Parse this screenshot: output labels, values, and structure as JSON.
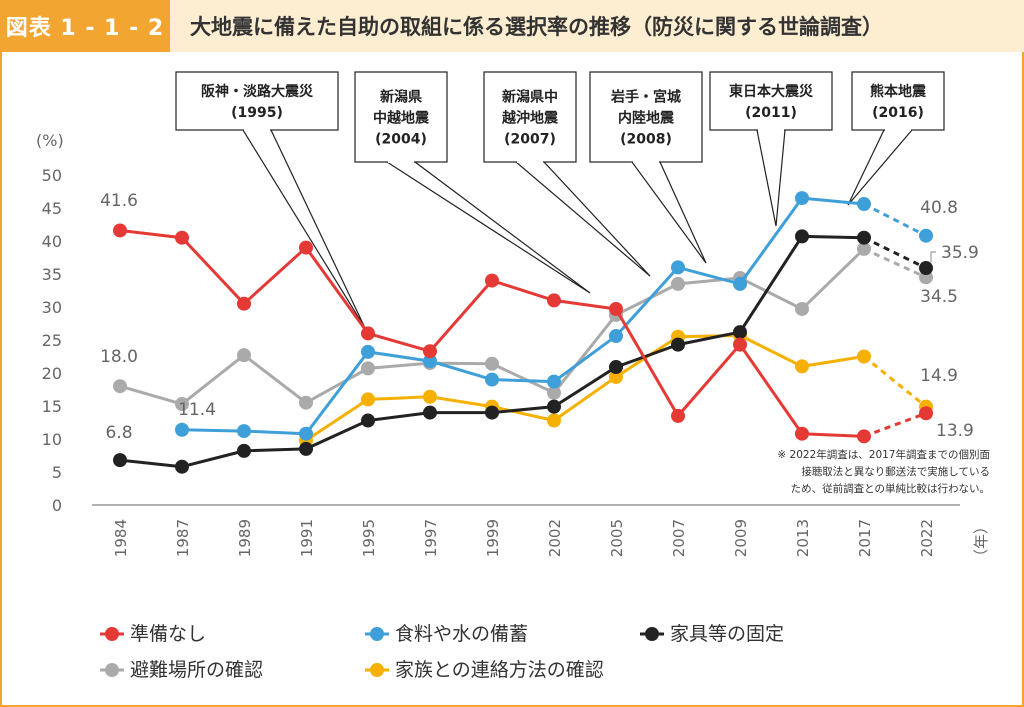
{
  "header": {
    "badge": "図表 1 - 1 - 2",
    "title": "大地震に備えた自助の取組に係る選択率の推移（防災に関する世論調査）"
  },
  "chart_data": {
    "type": "line",
    "ylabel": "(%)",
    "xlabel": "（年）",
    "ylim": [
      0,
      50
    ],
    "yticks": [
      0,
      5,
      10,
      15,
      20,
      25,
      30,
      35,
      40,
      45,
      50
    ],
    "categories": [
      "1984",
      "1987",
      "1989",
      "1991",
      "1995",
      "1997",
      "1999",
      "2002",
      "2005",
      "2007",
      "2009",
      "2013",
      "2017",
      "2022"
    ],
    "grid": false,
    "legend_position": "bottom",
    "series": [
      {
        "name": "準備なし",
        "color": "#e53935",
        "values": [
          41.6,
          40.5,
          30.5,
          39.0,
          26.0,
          23.3,
          34.0,
          31.0,
          29.7,
          13.5,
          24.3,
          10.8,
          10.4,
          13.9
        ]
      },
      {
        "name": "食料や水の備蓄",
        "color": "#3f9fd8",
        "values": [
          null,
          11.4,
          11.2,
          10.8,
          23.2,
          21.8,
          19.0,
          18.7,
          25.6,
          36.0,
          33.5,
          46.5,
          45.6,
          40.8
        ]
      },
      {
        "name": "家具等の固定",
        "color": "#222222",
        "values": [
          6.8,
          5.8,
          8.2,
          8.5,
          12.8,
          14.0,
          14.0,
          14.9,
          20.9,
          24.3,
          26.2,
          40.7,
          40.5,
          35.9
        ]
      },
      {
        "name": "避難場所の確認",
        "color": "#aaaaaa",
        "values": [
          18.0,
          15.3,
          22.7,
          15.5,
          20.7,
          21.5,
          21.4,
          17.0,
          28.8,
          33.5,
          34.4,
          29.7,
          38.8,
          34.5
        ]
      },
      {
        "name": "家族との連絡方法の確認",
        "color": "#f6b000",
        "values": [
          null,
          null,
          null,
          9.8,
          16.0,
          16.4,
          14.9,
          12.8,
          19.4,
          25.5,
          25.7,
          21.0,
          22.5,
          14.9
        ]
      }
    ],
    "data_labels": [
      "41.6",
      "18.0",
      "11.4",
      "6.8",
      "40.8",
      "35.9",
      "34.5",
      "14.9",
      "13.9"
    ],
    "annotations": [
      {
        "lines": [
          "阪神・淡路大震災",
          "(1995)"
        ]
      },
      {
        "lines": [
          "新潟県",
          "中越地震",
          "(2004)"
        ]
      },
      {
        "lines": [
          "新潟県中",
          "越沖地震",
          "(2007)"
        ]
      },
      {
        "lines": [
          "岩手・宮城",
          "内陸地震",
          "(2008)"
        ]
      },
      {
        "lines": [
          "東日本大震災",
          "(2011)"
        ]
      },
      {
        "lines": [
          "熊本地震",
          "(2016)"
        ]
      }
    ],
    "note": [
      "※ 2022年調査は、2017年調査までの個別面",
      "接聴取法と異なり郵送法で実施している",
      "ため、従前調査との単純比較は行わない。"
    ]
  }
}
